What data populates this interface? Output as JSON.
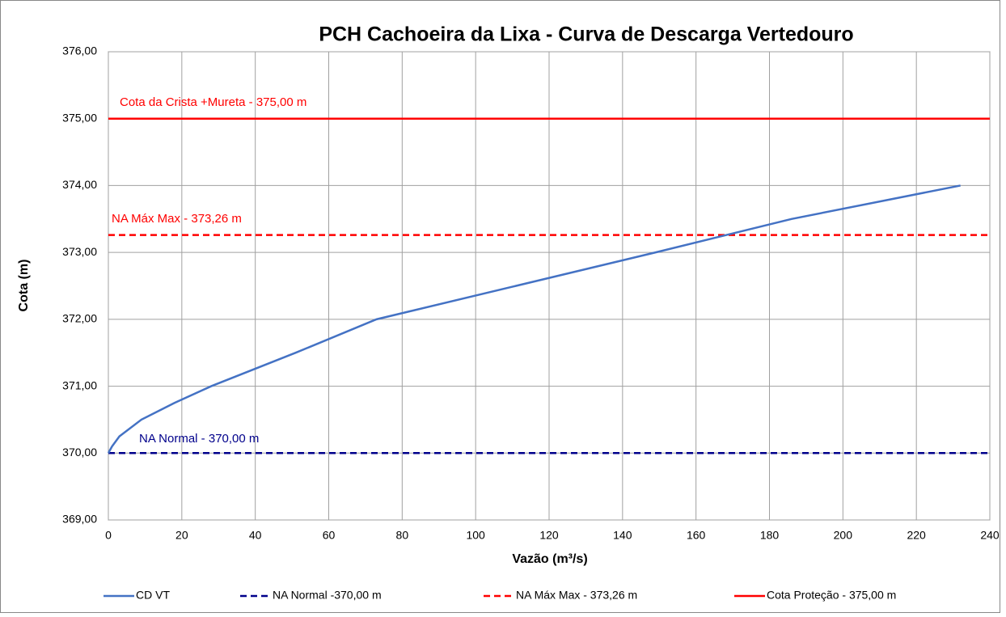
{
  "chart_data": {
    "type": "line",
    "title": "PCH Cachoeira da Lixa - Curva de Descarga Vertedouro",
    "xlabel": "Vazão (m³/s)",
    "ylabel": "Cota (m)",
    "xlim": [
      0,
      240
    ],
    "xticks": [
      0,
      20,
      40,
      60,
      80,
      100,
      120,
      140,
      160,
      180,
      200,
      220,
      240
    ],
    "ylim": [
      369,
      376
    ],
    "yticks": [
      {
        "value": 369,
        "label": "369,00"
      },
      {
        "value": 370,
        "label": "370,00"
      },
      {
        "value": 371,
        "label": "371,00"
      },
      {
        "value": 372,
        "label": "372,00"
      },
      {
        "value": 373,
        "label": "373,00"
      },
      {
        "value": 374,
        "label": "374,00"
      },
      {
        "value": 375,
        "label": "375,00"
      },
      {
        "value": 376,
        "label": "376,00"
      }
    ],
    "grid": true,
    "legend": "bottom",
    "series": [
      {
        "name": "CD VT",
        "color": "#4472c4",
        "dash": false,
        "x": [
          0,
          1,
          3,
          9,
          18,
          28,
          51,
          73,
          111,
          149,
          186,
          232
        ],
        "values": [
          370.0,
          370.1,
          370.25,
          370.5,
          370.75,
          371.0,
          371.5,
          372.0,
          372.5,
          373.0,
          373.5,
          374.0
        ]
      },
      {
        "name": "NA Normal -370,00 m",
        "color": "#00008b",
        "dash": true,
        "x": [
          0,
          240
        ],
        "values": [
          370.0,
          370.0
        ]
      },
      {
        "name": "NA Máx Max - 373,26 m",
        "color": "#ff0000",
        "dash": true,
        "x": [
          0,
          240
        ],
        "values": [
          373.26,
          373.26
        ]
      },
      {
        "name": "Cota Proteção - 375,00 m",
        "color": "#ff0000",
        "dash": false,
        "x": [
          0,
          240
        ],
        "values": [
          375.0,
          375.0
        ]
      }
    ],
    "annotations": [
      {
        "text": "Cota da Crista +Mureta - 375,00 m",
        "color": "#ff0000"
      },
      {
        "text": "NA Máx Max - 373,26 m",
        "color": "#ff0000"
      },
      {
        "text": "NA Normal - 370,00 m",
        "color": "#00008b"
      }
    ]
  }
}
